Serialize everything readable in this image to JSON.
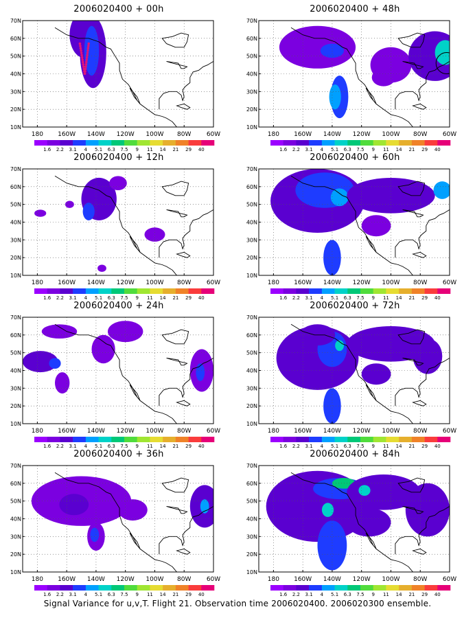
{
  "panels": [
    {
      "title": "2006020400 + 00h",
      "blobs": [
        [
          148,
          62,
          10,
          13,
          2
        ],
        [
          142,
          52,
          9,
          20,
          2
        ],
        [
          143,
          53,
          5,
          14,
          3
        ]
      ],
      "dots": true
    },
    {
      "title": "2006020400 + 48h",
      "blobs": [
        [
          150,
          55,
          26,
          12,
          1
        ],
        [
          140,
          53,
          8,
          4,
          3
        ],
        [
          100,
          45,
          14,
          10,
          1
        ],
        [
          135,
          27,
          6,
          12,
          3
        ],
        [
          138,
          27,
          4,
          7,
          4
        ],
        [
          70,
          50,
          18,
          14,
          2
        ],
        [
          63,
          52,
          7,
          7,
          5
        ],
        [
          105,
          38,
          8,
          5,
          1
        ]
      ],
      "circle": [
        62,
        46,
        6
      ]
    },
    {
      "title": "2006020400 + 12h",
      "blobs": [
        [
          138,
          53,
          12,
          12,
          2
        ],
        [
          145,
          46,
          4,
          5,
          3
        ],
        [
          158,
          50,
          3,
          2,
          1
        ],
        [
          178,
          45,
          4,
          2,
          1
        ],
        [
          100,
          33,
          7,
          4,
          1
        ],
        [
          125,
          62,
          6,
          4,
          1
        ],
        [
          136,
          14,
          3,
          2,
          1
        ]
      ]
    },
    {
      "title": "2006020400 + 60h",
      "blobs": [
        [
          150,
          52,
          32,
          18,
          2
        ],
        [
          145,
          58,
          20,
          10,
          3
        ],
        [
          135,
          54,
          6,
          5,
          4
        ],
        [
          100,
          55,
          30,
          10,
          2
        ],
        [
          140,
          20,
          6,
          10,
          3
        ],
        [
          110,
          38,
          10,
          6,
          1
        ],
        [
          65,
          58,
          6,
          5,
          4
        ]
      ]
    },
    {
      "title": "2006020400 + 24h",
      "blobs": [
        [
          165,
          62,
          12,
          4,
          1
        ],
        [
          178,
          45,
          12,
          6,
          2
        ],
        [
          168,
          44,
          4,
          3,
          3
        ],
        [
          163,
          33,
          5,
          6,
          1
        ],
        [
          135,
          52,
          8,
          8,
          1
        ],
        [
          120,
          62,
          12,
          6,
          1
        ],
        [
          68,
          40,
          8,
          12,
          1
        ],
        [
          69,
          39,
          3,
          5,
          3
        ]
      ]
    },
    {
      "title": "2006020400 + 72h",
      "blobs": [
        [
          150,
          47,
          28,
          18,
          2
        ],
        [
          140,
          52,
          10,
          10,
          3
        ],
        [
          135,
          54,
          3,
          3,
          5
        ],
        [
          100,
          55,
          30,
          10,
          2
        ],
        [
          140,
          20,
          6,
          10,
          3
        ],
        [
          110,
          38,
          10,
          6,
          2
        ],
        [
          75,
          48,
          10,
          10,
          2
        ],
        [
          150,
          60,
          12,
          6,
          2
        ]
      ]
    },
    {
      "title": "2006020400 + 36h",
      "blobs": [
        [
          150,
          50,
          34,
          14,
          1
        ],
        [
          155,
          48,
          10,
          6,
          2
        ],
        [
          140,
          30,
          6,
          8,
          1
        ],
        [
          141,
          31,
          3,
          4,
          3
        ],
        [
          115,
          45,
          10,
          6,
          1
        ],
        [
          66,
          47,
          10,
          12,
          2
        ],
        [
          66,
          47,
          3,
          4,
          4
        ]
      ]
    },
    {
      "title": "2006020400 + 84h",
      "blobs": [
        [
          150,
          47,
          35,
          20,
          2
        ],
        [
          135,
          57,
          18,
          6,
          3
        ],
        [
          132,
          60,
          8,
          3,
          6
        ],
        [
          143,
          45,
          4,
          4,
          5
        ],
        [
          140,
          25,
          10,
          14,
          3
        ],
        [
          105,
          55,
          25,
          10,
          2
        ],
        [
          115,
          38,
          15,
          8,
          2
        ],
        [
          75,
          45,
          15,
          15,
          2
        ],
        [
          118,
          56,
          4,
          3,
          5
        ]
      ]
    }
  ],
  "colorbar": {
    "colors": [
      "#9b00ff",
      "#7b00e0",
      "#5a00d0",
      "#1e3cff",
      "#00a0ff",
      "#00d2c8",
      "#00c878",
      "#50dc3c",
      "#a0e632",
      "#e6dc32",
      "#e6af2d",
      "#f08228",
      "#fa3c3c",
      "#e60078"
    ],
    "labels": [
      "1.6",
      "2.2",
      "3.1",
      "4",
      "5.1",
      "6.3",
      "7.5",
      "9",
      "11",
      "14",
      "21",
      "29",
      "40"
    ]
  },
  "axes": {
    "lat_labels": [
      "10N",
      "20N",
      "30N",
      "40N",
      "50N",
      "60N",
      "70N"
    ],
    "lon_labels": [
      "180",
      "160W",
      "140W",
      "120W",
      "100W",
      "80W",
      "60W"
    ]
  },
  "footer": "Signal Variance for u,v,T. Flight 21. Observation time 2006020400. 2006020300 ensemble."
}
